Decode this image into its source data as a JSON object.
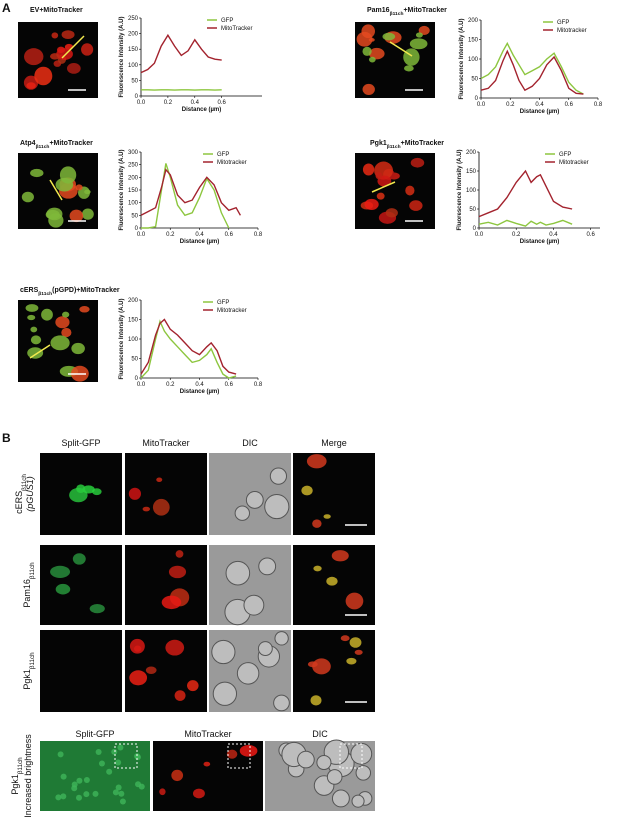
{
  "panel_labels": [
    "A",
    "B"
  ],
  "chart_data": [
    {
      "type": "line",
      "image_title": {
        "main": "EV+MitoTracker"
      },
      "ylabel": "Fluorescence Intensity (A.U)",
      "xlabel": "Distance (µm)",
      "xlim": [
        0,
        0.9
      ],
      "xticks": [
        {
          "value": 0,
          "label": "0.0"
        },
        0.2,
        0.4,
        0.6
      ],
      "ylim": [
        0,
        250
      ],
      "yticks": [
        0,
        50,
        100,
        150,
        200,
        250
      ],
      "legend": "upper right",
      "x": [
        0,
        0.05,
        0.1,
        0.15,
        0.2,
        0.25,
        0.3,
        0.35,
        0.4,
        0.45,
        0.5,
        0.55,
        0.6
      ],
      "series": [
        {
          "name": "GFP",
          "color": "#8dc63f",
          "values": [
            20,
            20,
            19,
            20,
            20,
            19,
            20,
            20,
            19,
            20,
            20,
            19,
            20
          ]
        },
        {
          "name": "MitoTracker",
          "color": "#a3232e",
          "values": [
            75,
            85,
            105,
            160,
            195,
            160,
            130,
            145,
            180,
            150,
            125,
            118,
            115
          ]
        }
      ]
    },
    {
      "type": "line",
      "image_title": {
        "main": "Pam16",
        "sub": "β11ch",
        "rest": "+MitoTracker"
      },
      "ylabel": "Fluorescence Intensity (A.U)",
      "xlabel": "Distance (µm)",
      "xlim": [
        0,
        0.8
      ],
      "xticks": [
        {
          "value": 0,
          "label": "0.0"
        },
        0.2,
        0.4,
        0.6,
        0.8
      ],
      "ylim": [
        0,
        200
      ],
      "yticks": [
        0,
        50,
        100,
        150,
        200
      ],
      "legend": "upper right",
      "x": [
        0,
        0.05,
        0.1,
        0.15,
        0.18,
        0.22,
        0.26,
        0.3,
        0.35,
        0.4,
        0.45,
        0.5,
        0.55,
        0.6,
        0.65,
        0.7
      ],
      "series": [
        {
          "name": "GFP",
          "color": "#8dc63f",
          "values": [
            50,
            60,
            80,
            120,
            140,
            110,
            85,
            60,
            70,
            80,
            100,
            115,
            80,
            40,
            20,
            10
          ]
        },
        {
          "name": "Mitotracker",
          "color": "#a3232e",
          "values": [
            20,
            25,
            45,
            95,
            120,
            85,
            45,
            20,
            30,
            50,
            85,
            105,
            70,
            25,
            12,
            10
          ]
        }
      ]
    },
    {
      "type": "line",
      "image_title": {
        "main": "Atp4",
        "sub": "β11ch",
        "rest": "+MitoTracker"
      },
      "ylabel": "Fluorescence Intensity (A.U)",
      "xlabel": "Distance (µm)",
      "xlim": [
        0,
        0.8
      ],
      "xticks": [
        {
          "value": 0,
          "label": "0.0"
        },
        0.2,
        0.4,
        0.6,
        0.8
      ],
      "ylim": [
        0,
        300
      ],
      "yticks": [
        0,
        50,
        100,
        150,
        200,
        250,
        300
      ],
      "legend": "upper right",
      "x": [
        0,
        0.05,
        0.1,
        0.14,
        0.17,
        0.2,
        0.25,
        0.3,
        0.35,
        0.4,
        0.45,
        0.5,
        0.55,
        0.6,
        0.65,
        0.68
      ],
      "series": [
        {
          "name": "GFP",
          "color": "#8dc63f",
          "values": [
            0,
            0,
            5,
            150,
            255,
            200,
            90,
            50,
            60,
            120,
            195,
            150,
            60,
            0,
            null,
            null
          ]
        },
        {
          "name": "Mitotracker",
          "color": "#a3232e",
          "values": [
            50,
            65,
            80,
            160,
            230,
            210,
            130,
            100,
            110,
            160,
            200,
            170,
            100,
            70,
            80,
            50
          ]
        }
      ]
    },
    {
      "type": "line",
      "image_title": {
        "main": "Pgk1",
        "sub": "β11ch",
        "rest": "+MitoTracker"
      },
      "ylabel": "Fluorescence Intensity (A.U)",
      "xlabel": "Distance (µm)",
      "xlim": [
        0,
        0.65
      ],
      "xticks": [
        {
          "value": 0,
          "label": "0.0"
        },
        0.2,
        0.4,
        0.6
      ],
      "ylim": [
        0,
        200
      ],
      "yticks": [
        0,
        50,
        100,
        150,
        200
      ],
      "legend": "upper right",
      "x": [
        0,
        0.05,
        0.1,
        0.15,
        0.2,
        0.25,
        0.28,
        0.31,
        0.33,
        0.36,
        0.4,
        0.45,
        0.5
      ],
      "series": [
        {
          "name": "GFP",
          "color": "#8dc63f",
          "values": [
            10,
            15,
            8,
            20,
            12,
            5,
            18,
            10,
            15,
            8,
            12,
            20,
            10
          ]
        },
        {
          "name": "Mitotracker",
          "color": "#a3232e",
          "values": [
            30,
            40,
            50,
            80,
            120,
            150,
            120,
            135,
            140,
            110,
            70,
            55,
            50
          ]
        }
      ]
    },
    {
      "type": "line",
      "image_title": {
        "main": "cERS",
        "sub": "β11ch",
        "rest": "(pGPD)+MitoTracker"
      },
      "ylabel": "Fluorescence Intensity (A.U)",
      "xlabel": "Distance (µm)",
      "xlim": [
        0,
        0.8
      ],
      "xticks": [
        {
          "value": 0,
          "label": "0.0"
        },
        0.2,
        0.4,
        0.6,
        0.8
      ],
      "ylim": [
        0,
        200
      ],
      "yticks": [
        0,
        50,
        100,
        150,
        200
      ],
      "legend": "upper right",
      "x": [
        0,
        0.05,
        0.1,
        0.13,
        0.16,
        0.2,
        0.25,
        0.3,
        0.35,
        0.4,
        0.45,
        0.48,
        0.52,
        0.56,
        0.6,
        0.65
      ],
      "series": [
        {
          "name": "GFP",
          "color": "#8dc63f",
          "values": [
            0,
            20,
            100,
            145,
            120,
            100,
            80,
            60,
            40,
            45,
            60,
            75,
            40,
            10,
            0,
            5
          ]
        },
        {
          "name": "Mitotracker",
          "color": "#a3232e",
          "values": [
            10,
            40,
            110,
            140,
            150,
            125,
            110,
            90,
            70,
            60,
            80,
            90,
            70,
            30,
            15,
            10
          ]
        }
      ]
    }
  ],
  "panel_b": {
    "columns": [
      "Split-GFP",
      "MitoTracker",
      "DIC",
      "Merge"
    ],
    "rows": [
      {
        "main": "cERS",
        "sub": "β11ch",
        "extra": "(pGUS1)"
      },
      {
        "main": "Pam16",
        "sub": "β11ch"
      },
      {
        "main": "Pgk1",
        "sub": "β11ch"
      }
    ],
    "bottom": {
      "columns": [
        "Split-GFP",
        "MitoTracker",
        "DIC"
      ],
      "row": {
        "main": "Pgk1",
        "sub": "β11ch",
        "extra": "Increased brightness"
      }
    }
  }
}
